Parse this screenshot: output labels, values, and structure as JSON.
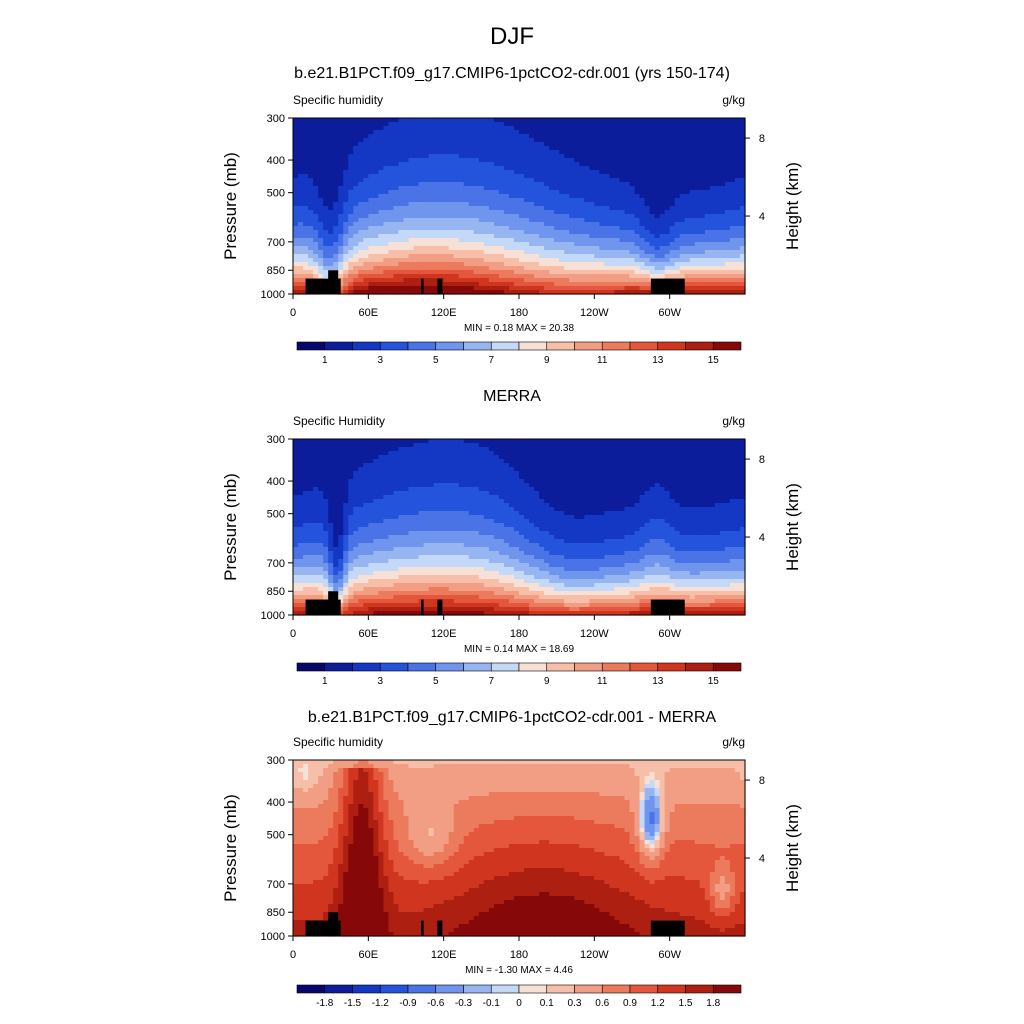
{
  "figure_title": "DJF",
  "chart_data": [
    {
      "type": "heatmap",
      "title": "b.e21.B1PCT.f09_g17.CMIP6-1pctCO2-cdr.001 (yrs 150-174)",
      "left_label": "Specific humidity",
      "right_label": "g/kg",
      "ylabel": "Pressure (mb)",
      "ylabel_right": "Height (km)",
      "y_ticks": [
        "300",
        "400",
        "500",
        "700",
        "850",
        "1000"
      ],
      "y_ticks_right": [
        "8",
        "4"
      ],
      "x_ticks": [
        "0",
        "60E",
        "120E",
        "180",
        "120W",
        "60W"
      ],
      "stats": "MIN =   0.18  MAX =  20.38",
      "colorbar_labels": [
        "1",
        "3",
        "5",
        "7",
        "9",
        "11",
        "13",
        "15"
      ],
      "levels": [
        0,
        1,
        2,
        3,
        4,
        5,
        6,
        7,
        8,
        9,
        10,
        11,
        12,
        13,
        14,
        15
      ],
      "field": "model"
    },
    {
      "type": "heatmap",
      "title": "MERRA",
      "left_label": "Specific Humidity",
      "right_label": "g/kg",
      "ylabel": "Pressure (mb)",
      "ylabel_right": "Height (km)",
      "y_ticks": [
        "300",
        "400",
        "500",
        "700",
        "850",
        "1000"
      ],
      "y_ticks_right": [
        "8",
        "4"
      ],
      "x_ticks": [
        "0",
        "60E",
        "120E",
        "180",
        "120W",
        "60W"
      ],
      "stats": "MIN =   0.14  MAX =  18.69",
      "colorbar_labels": [
        "1",
        "3",
        "5",
        "7",
        "9",
        "11",
        "13",
        "15"
      ],
      "levels": [
        0,
        1,
        2,
        3,
        4,
        5,
        6,
        7,
        8,
        9,
        10,
        11,
        12,
        13,
        14,
        15
      ],
      "field": "obs"
    },
    {
      "type": "heatmap",
      "title": "b.e21.B1PCT.f09_g17.CMIP6-1pctCO2-cdr.001 - MERRA",
      "left_label": "Specific humidity",
      "right_label": "g/kg",
      "ylabel": "Pressure (mb)",
      "ylabel_right": "Height (km)",
      "y_ticks": [
        "300",
        "400",
        "500",
        "700",
        "850",
        "1000"
      ],
      "y_ticks_right": [
        "8",
        "4"
      ],
      "x_ticks": [
        "0",
        "60E",
        "120E",
        "180",
        "120W",
        "60W"
      ],
      "stats": "MIN =  -1.30  MAX =   4.46",
      "colorbar_labels": [
        "-1.8",
        "-1.5",
        "-1.2",
        "-0.9",
        "-0.6",
        "-0.3",
        "-0.1",
        "0",
        "0.1",
        "0.3",
        "0.6",
        "0.9",
        "1.2",
        "1.5",
        "1.8"
      ],
      "levels": [
        -1.8,
        -1.5,
        -1.2,
        -0.9,
        -0.6,
        -0.3,
        -0.1,
        0,
        0.1,
        0.3,
        0.6,
        0.9,
        1.2,
        1.5,
        1.8
      ],
      "field": "diff"
    }
  ],
  "colors": {
    "palette": [
      "#08086b",
      "#0c1d9c",
      "#1437c4",
      "#2554dc",
      "#4a73e6",
      "#6f95ec",
      "#97b6f1",
      "#c4d8f7",
      "#f7e1d6",
      "#f7bfa8",
      "#f29e84",
      "#ec7a5c",
      "#e4573c",
      "#d0361f",
      "#ad1f10",
      "#870808"
    ],
    "terrain": "#000000"
  }
}
